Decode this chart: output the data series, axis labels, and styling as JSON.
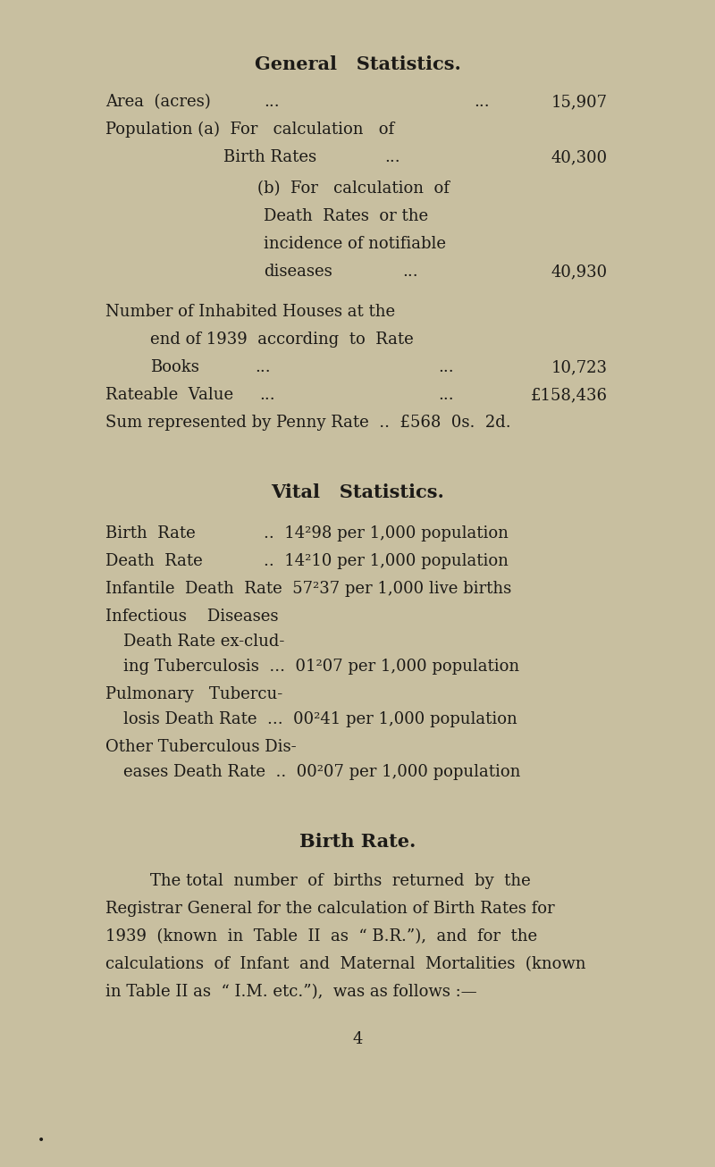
{
  "bg_color": "#c8bfa0",
  "text_color": "#1c1a17",
  "page_number": "4",
  "title1": "General   Statistics.",
  "title2": "Vital   Statistics.",
  "title3": "Birth Rate.",
  "figw": 8.0,
  "figh": 13.06,
  "dpi": 100
}
